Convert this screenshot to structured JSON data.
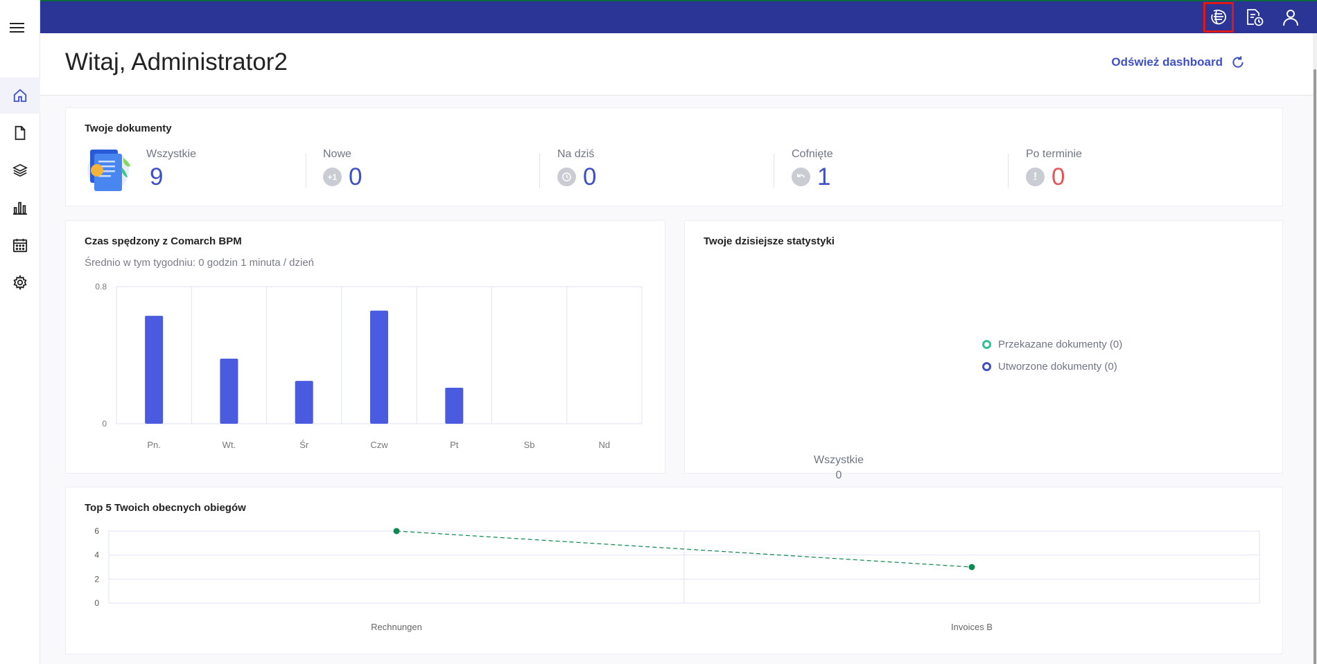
{
  "header": {
    "greeting": "Witaj, Administrator2",
    "refresh_label": "Odśwież dashboard"
  },
  "topbar": {
    "icons": [
      "bpm-logo-icon",
      "document-clock-icon",
      "user-icon"
    ]
  },
  "sidebar": {
    "items": [
      {
        "icon": "home-icon",
        "active": true
      },
      {
        "icon": "document-icon",
        "active": false
      },
      {
        "icon": "layers-icon",
        "active": false
      },
      {
        "icon": "bar-chart-icon",
        "active": false
      },
      {
        "icon": "calendar-icon",
        "active": false
      },
      {
        "icon": "gear-icon",
        "active": false
      }
    ]
  },
  "documents": {
    "title": "Twoje dokumenty",
    "stats": [
      {
        "label": "Wszystkie",
        "value": "9"
      },
      {
        "label": "Nowe",
        "value": "0",
        "badge": "+1"
      },
      {
        "label": "Na dziś",
        "value": "0"
      },
      {
        "label": "Cofnięte",
        "value": "1"
      },
      {
        "label": "Po terminie",
        "value": "0",
        "badge": "!"
      }
    ]
  },
  "time_card": {
    "title": "Czas spędzony z Comarch BPM",
    "subtitle": "Średnio w tym tygodniu: 0 godzin 1 minuta / dzień"
  },
  "today_card": {
    "title": "Twoje dzisiejsze statystyki",
    "legend": [
      "Przekazane dokumenty (0)",
      "Utworzone dokumenty (0)"
    ],
    "center_label": "Wszystkie",
    "center_value": "0"
  },
  "top5_card": {
    "title": "Top 5 Twoich obecnych obiegów"
  },
  "colors": {
    "accent": "#3f4fc5",
    "bar": "#4a5be0",
    "topbar": "#2b3595",
    "line": "#0f8a4f",
    "danger": "#e85555",
    "legend_green": "#2ec48f",
    "legend_blue": "#3f4fc5"
  },
  "chart_data": [
    {
      "type": "bar",
      "categories": [
        "Pn.",
        "Wt.",
        "Śr",
        "Czw",
        "Pt",
        "Sb",
        "Nd"
      ],
      "values": [
        0.63,
        0.38,
        0.25,
        0.66,
        0.21,
        0,
        0
      ],
      "ylim": [
        0,
        0.8
      ],
      "yticks": [
        "0",
        "0.8"
      ],
      "grid": true
    },
    {
      "type": "line",
      "categories": [
        "Rechnungen",
        "Invoices B"
      ],
      "values": [
        6,
        3
      ],
      "ylim": [
        0,
        6
      ],
      "yticks": [
        "0",
        "2",
        "4",
        "6"
      ],
      "grid": true
    }
  ]
}
